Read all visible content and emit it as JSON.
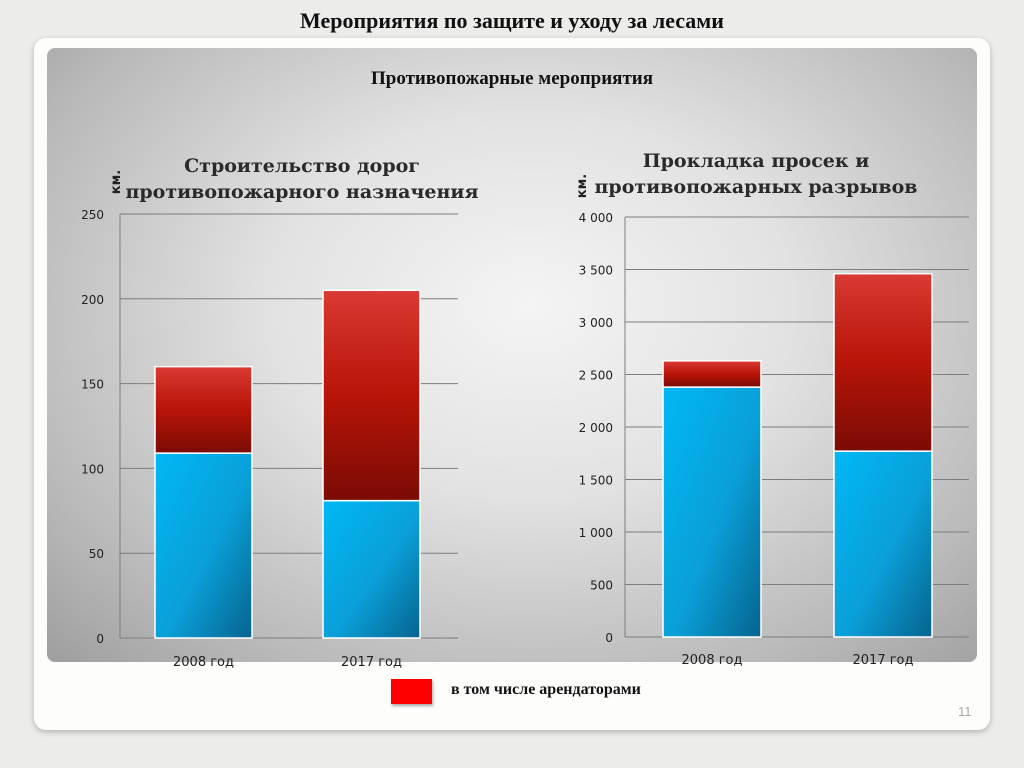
{
  "slide": {
    "title": "Мероприятия по защите и уходу за лесами",
    "subtitle": "Противопожарные мероприятия",
    "page_number": "11"
  },
  "legend": {
    "label": "в том числе арендаторами",
    "color": "#ff0000"
  },
  "colors": {
    "total_series": "#00b0f0",
    "tenant_series": "#c00000"
  },
  "chart_data": [
    {
      "type": "bar",
      "stacked": true,
      "title": "Строительство дорог противопожарного назначения",
      "unit_label": "км.",
      "categories": [
        "2008 год",
        "2017 год"
      ],
      "series": [
        {
          "values": [
            109,
            81
          ]
        },
        {
          "name": "в том числе арендаторами",
          "values": [
            51,
            124
          ]
        }
      ],
      "ylim": [
        0,
        250
      ],
      "yticks": [
        "0",
        "50",
        "100",
        "150",
        "200",
        "250"
      ],
      "grid": true
    },
    {
      "type": "bar",
      "stacked": true,
      "title": "Прокладка просек и противопожарных разрывов",
      "unit_label": "км.",
      "categories": [
        "2008 год",
        "2017 год"
      ],
      "series": [
        {
          "values": [
            2380,
            1770
          ]
        },
        {
          "name": "в том числе арендаторами",
          "values": [
            250,
            1690
          ]
        }
      ],
      "ylim": [
        0,
        4000
      ],
      "yticks": [
        "0",
        "500",
        "1 000",
        "1 500",
        "2 000",
        "2 500",
        "3 000",
        "3 500",
        "4 000"
      ],
      "grid": true
    }
  ]
}
